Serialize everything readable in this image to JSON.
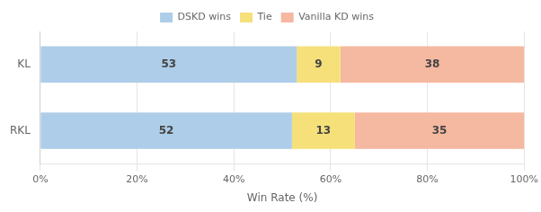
{
  "chart_data": {
    "type": "bar",
    "orientation": "horizontal",
    "stacked": true,
    "categories": [
      "KL",
      "RKL"
    ],
    "series": [
      {
        "name": "DSKD wins",
        "color": "#aecde8",
        "values": [
          53,
          52
        ]
      },
      {
        "name": "Tie",
        "color": "#f5e07a",
        "values": [
          9,
          13
        ]
      },
      {
        "name": "Vanilla KD wins",
        "color": "#f5b8a0",
        "values": [
          38,
          35
        ]
      }
    ],
    "xlabel": "Win Rate (%)",
    "xlim": [
      0,
      100
    ],
    "xticks": [
      {
        "value": 0,
        "label": "0%"
      },
      {
        "value": 20,
        "label": "20%"
      },
      {
        "value": 40,
        "label": "40%"
      },
      {
        "value": 60,
        "label": "60%"
      },
      {
        "value": 80,
        "label": "80%"
      },
      {
        "value": 100,
        "label": "100%"
      }
    ],
    "grid": true,
    "legend": "top",
    "data_labels": true
  }
}
